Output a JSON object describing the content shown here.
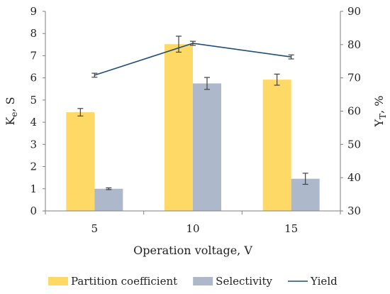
{
  "chart_data": {
    "type": "bar",
    "categories": [
      "5",
      "10",
      "15"
    ],
    "xlabel": "Operation voltage, V",
    "ylabel_left": {
      "main": "K",
      "sub": "e",
      "rest": ", S"
    },
    "ylabel_right": {
      "main": "Y",
      "sub": "T",
      "rest": ", %"
    },
    "ylim_left": [
      0,
      9
    ],
    "ylim_right": [
      30,
      90
    ],
    "left_ticks": [
      "0",
      "1",
      "2",
      "3",
      "4",
      "5",
      "6",
      "7",
      "8",
      "9"
    ],
    "right_ticks": [
      "30",
      "40",
      "50",
      "60",
      "70",
      "80",
      "90"
    ],
    "series": [
      {
        "name": "Partition coefficient",
        "kind": "bar",
        "axis": "left",
        "color": "#FFD966",
        "values": [
          4.45,
          7.52,
          5.92
        ],
        "errors": [
          0.17,
          0.36,
          0.25
        ]
      },
      {
        "name": "Selectivity",
        "kind": "bar",
        "axis": "left",
        "color": "#ADB9CA",
        "values": [
          1.0,
          5.75,
          1.45
        ],
        "errors": [
          0.04,
          0.27,
          0.25
        ]
      },
      {
        "name": "Yield",
        "kind": "line",
        "axis": "right",
        "color": "#1F4E79",
        "values": [
          70.8,
          80.4,
          76.3
        ],
        "errors": [
          0.6,
          0.6,
          0.6
        ]
      }
    ],
    "legend_position": "bottom",
    "grid": false
  }
}
